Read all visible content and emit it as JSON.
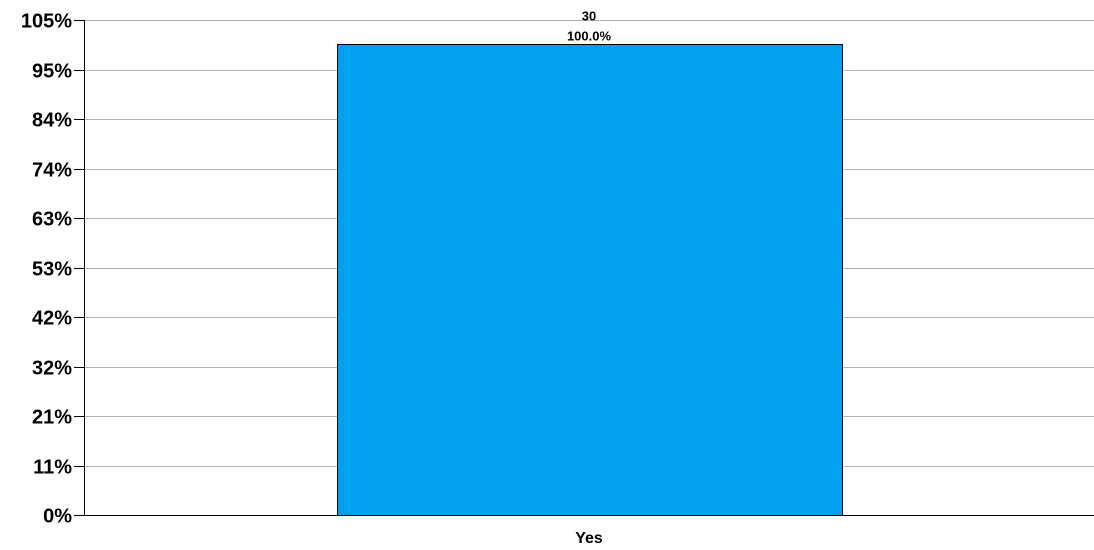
{
  "chart_data": {
    "type": "bar",
    "title": "",
    "xlabel": "",
    "ylabel": "",
    "categories": [
      "Yes"
    ],
    "counts": [
      30
    ],
    "values": [
      100.0
    ],
    "data_labels": [
      {
        "count": "30",
        "percent": "100.0%"
      }
    ],
    "ylim": [
      0,
      105
    ],
    "y_ticks": [
      {
        "label": "0%",
        "value": 0
      },
      {
        "label": "11%",
        "value": 10.5
      },
      {
        "label": "21%",
        "value": 21
      },
      {
        "label": "32%",
        "value": 31.5
      },
      {
        "label": "42%",
        "value": 42
      },
      {
        "label": "53%",
        "value": 52.5
      },
      {
        "label": "63%",
        "value": 63
      },
      {
        "label": "74%",
        "value": 73.5
      },
      {
        "label": "84%",
        "value": 84
      },
      {
        "label": "95%",
        "value": 94.5
      },
      {
        "label": "105%",
        "value": 105
      }
    ],
    "grid": true,
    "legend": "none",
    "colors": {
      "bar": "#00a2f0",
      "bar_outline": "#000000",
      "grid": "#b3b3b3",
      "axis": "#000000"
    }
  }
}
